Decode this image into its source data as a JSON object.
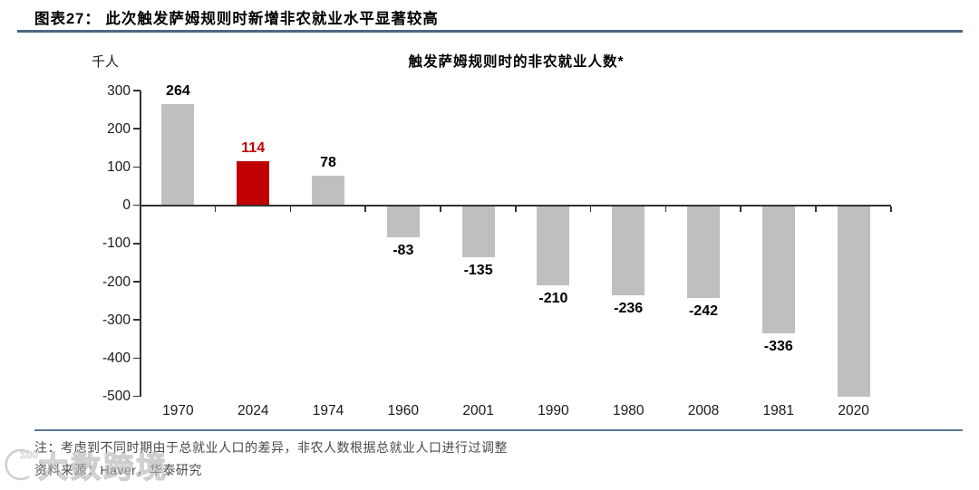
{
  "header": {
    "title": "图表27：  此次触发萨姆规则时新增非农就业水平显著较高"
  },
  "chart_data": {
    "type": "bar",
    "title": "触发萨姆规则时的非农就业人数*",
    "ylabel": "千人",
    "categories": [
      "1970",
      "2024",
      "1974",
      "1960",
      "2001",
      "1990",
      "1980",
      "2008",
      "1981",
      "2020"
    ],
    "values": [
      264,
      114,
      78,
      -83,
      -135,
      -210,
      -236,
      -242,
      -336,
      -500
    ],
    "bar_labels": [
      "264",
      "114",
      "78",
      "-83",
      "-135",
      "-210",
      "-236",
      "-242",
      "-336",
      ""
    ],
    "highlight_index": 1,
    "clipped_indices": [
      9
    ],
    "ylim": [
      -500,
      300
    ],
    "yticks": [
      300,
      200,
      100,
      0,
      -100,
      -200,
      -300,
      -400,
      -500
    ],
    "grid": false,
    "legend": "none",
    "colors": {
      "bar": "#bfbfbf",
      "highlight": "#c00000",
      "axis": "#333333",
      "value_label": "#000000",
      "highlight_value_label": "#c00000",
      "tick_label": "#1a1a1a"
    }
  },
  "footer": {
    "note": "注：考虑到不同时期由于总就业人口的差异，非农人数根据总就业人口进行过调整",
    "source": "资料来源：Haver，华泰研究"
  },
  "watermark": {
    "text": "大数跨境",
    "logo_text": "100"
  },
  "colors": {
    "title_rule": "#4d6780",
    "bottom_rule": "#5b7895",
    "footer_text": "#4a4a4a"
  }
}
